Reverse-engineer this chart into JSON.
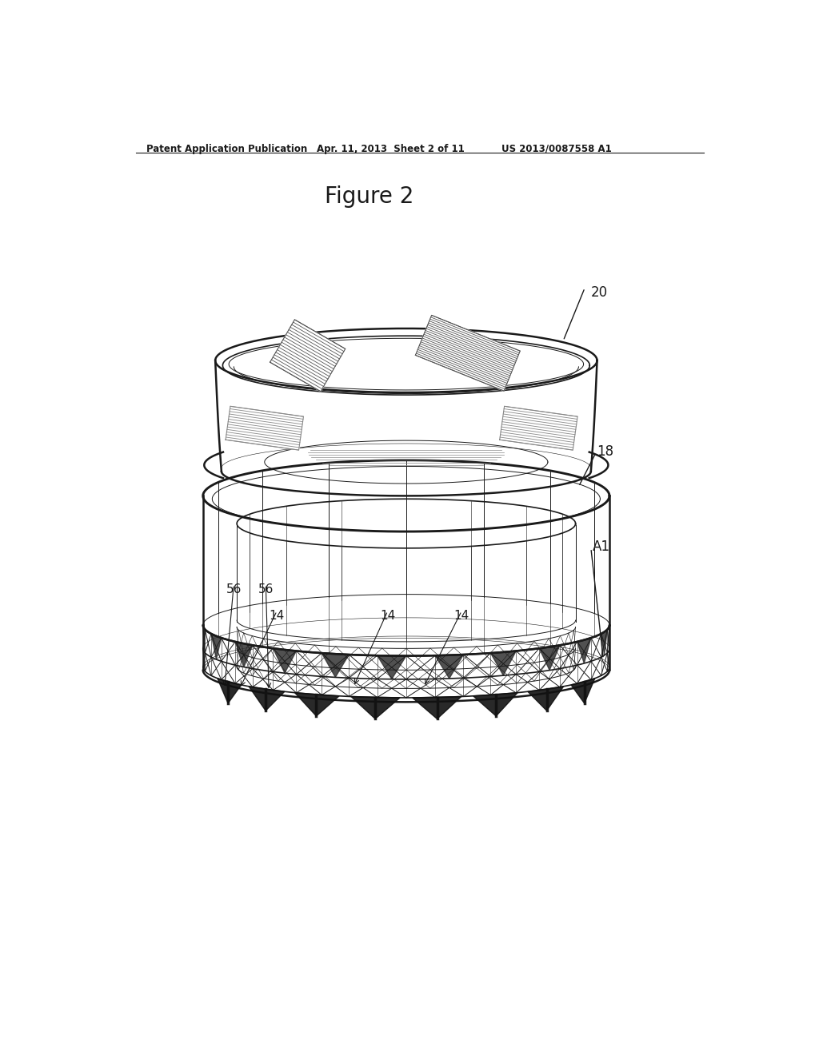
{
  "title": "Figure 2",
  "header_left": "Patent Application Publication",
  "header_mid": "Apr. 11, 2013  Sheet 2 of 11",
  "header_right": "US 2013/0087558 A1",
  "label_20": "20",
  "label_18": "18",
  "label_A1": "A1",
  "label_56a": "56",
  "label_56b": "56",
  "label_14a": "14",
  "label_14b": "14",
  "label_14c": "14",
  "bg_color": "#ffffff",
  "line_color": "#1a1a1a"
}
